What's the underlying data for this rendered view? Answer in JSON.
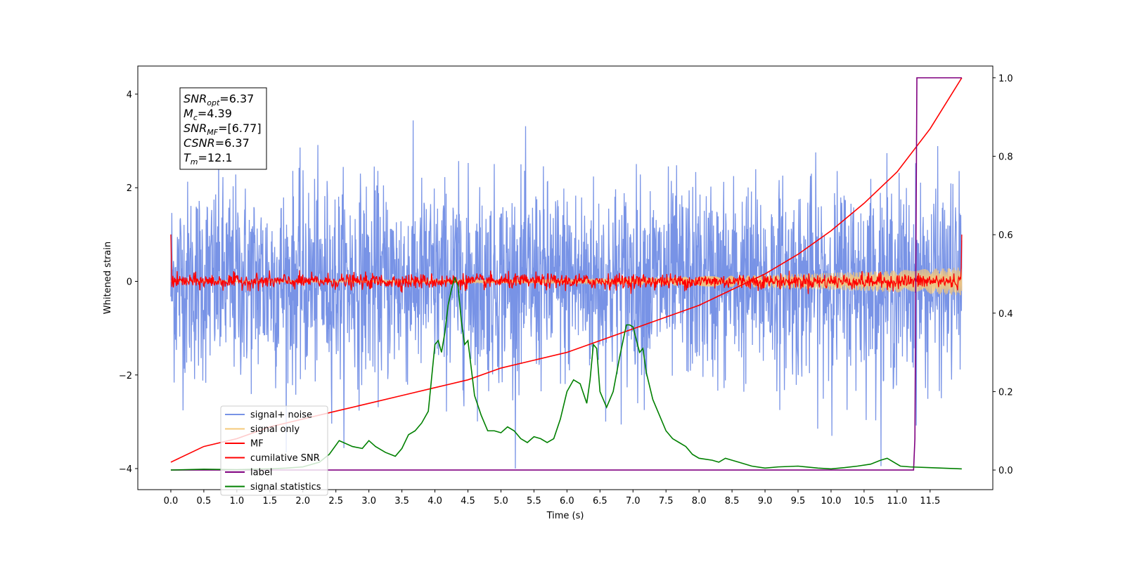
{
  "chart_data": {
    "type": "line",
    "title": "",
    "xlabel": "Time (s)",
    "ylabel": "Whitened strain",
    "y2label": "",
    "xlim": [
      -0.5,
      12.45
    ],
    "ylim": [
      -4.45,
      4.6
    ],
    "y2lim": [
      -0.05,
      1.03
    ],
    "x_ticks": [
      0.0,
      0.5,
      1.0,
      1.5,
      2.0,
      2.5,
      3.0,
      3.5,
      4.0,
      4.5,
      5.0,
      5.5,
      6.0,
      6.5,
      7.0,
      7.5,
      8.0,
      8.5,
      9.0,
      9.5,
      10.0,
      10.5,
      11.0,
      11.5
    ],
    "x_tick_labels": [
      "0.0",
      "0.5",
      "1.0",
      "1.5",
      "2.0",
      "2.5",
      "3.0",
      "3.5",
      "4.0",
      "4.5",
      "5.0",
      "5.5",
      "6.0",
      "6.5",
      "7.0",
      "7.5",
      "8.0",
      "8.5",
      "9.0",
      "9.5",
      "10.0",
      "10.5",
      "11.0",
      "11.5"
    ],
    "y_ticks": [
      4,
      2,
      0,
      -2,
      -4
    ],
    "y_tick_labels": [
      "4",
      "2",
      "0",
      "−2",
      "−4"
    ],
    "y2_ticks": [
      1.0,
      0.8,
      0.6,
      0.4,
      0.2,
      0.0
    ],
    "y2_tick_labels": [
      "1.0",
      "0.8",
      "0.6",
      "0.4",
      "0.2",
      "0.0"
    ],
    "grid": false,
    "legend_position": "lower-left",
    "stats_box": {
      "lines": [
        {
          "main": "SNR",
          "sub": "opt",
          "value": "=6.37"
        },
        {
          "main": "M",
          "sub": "c",
          "value": "=4.39"
        },
        {
          "main": "SNR",
          "sub": "MF",
          "value": "=[6.77]"
        },
        {
          "main": "CSNR",
          "sub": "",
          "value": "=6.37"
        },
        {
          "main": "T",
          "sub": "m",
          "value": "=12.1"
        }
      ]
    },
    "series": [
      {
        "name": "signal+ noise",
        "color": "#7893e6",
        "axis": "left",
        "style": "noise",
        "x_range": [
          0.0,
          11.98
        ],
        "std": 1.05,
        "peak_max": 4.15,
        "peak_min": -4.0
      },
      {
        "name": "signal only",
        "color": "#f5c87a",
        "axis": "left",
        "style": "chirp",
        "x_range": [
          0.0,
          11.98
        ],
        "amplitude_start": 0.02,
        "amplitude_end": 0.3
      },
      {
        "name": "MF",
        "color": "#ff0000",
        "axis": "left",
        "style": "noise",
        "x_range": [
          0.0,
          11.98
        ],
        "std": 0.08,
        "edge_values": [
          1.0,
          1.0
        ]
      },
      {
        "name": "cumilative SNR",
        "color": "#ff0000",
        "axis": "right",
        "x": [
          0.0,
          0.5,
          1.0,
          1.5,
          2.0,
          2.5,
          3.0,
          3.5,
          4.0,
          4.5,
          5.0,
          5.5,
          6.0,
          6.5,
          7.0,
          7.5,
          8.0,
          8.5,
          9.0,
          9.5,
          10.0,
          10.5,
          11.0,
          11.5,
          11.98
        ],
        "values": [
          0.02,
          0.06,
          0.08,
          0.11,
          0.13,
          0.15,
          0.17,
          0.19,
          0.21,
          0.23,
          0.26,
          0.28,
          0.3,
          0.33,
          0.36,
          0.39,
          0.42,
          0.46,
          0.5,
          0.55,
          0.61,
          0.68,
          0.76,
          0.87,
          1.0
        ]
      },
      {
        "name": "label",
        "color": "#800080",
        "axis": "right",
        "x": [
          0.0,
          11.25,
          11.27,
          11.3,
          11.98
        ],
        "values": [
          0.0,
          0.0,
          0.08,
          1.0,
          1.0
        ]
      },
      {
        "name": "signal statistics",
        "color": "#008000",
        "axis": "right",
        "x": [
          0.0,
          0.5,
          1.0,
          1.5,
          1.75,
          2.0,
          2.25,
          2.4,
          2.55,
          2.75,
          2.9,
          3.0,
          3.1,
          3.25,
          3.4,
          3.5,
          3.6,
          3.7,
          3.8,
          3.9,
          4.0,
          4.05,
          4.1,
          4.15,
          4.2,
          4.25,
          4.3,
          4.35,
          4.4,
          4.45,
          4.5,
          4.6,
          4.7,
          4.8,
          4.9,
          5.0,
          5.1,
          5.2,
          5.3,
          5.4,
          5.5,
          5.6,
          5.7,
          5.8,
          5.9,
          6.0,
          6.1,
          6.2,
          6.3,
          6.35,
          6.4,
          6.45,
          6.5,
          6.55,
          6.6,
          6.7,
          6.8,
          6.9,
          6.95,
          7.0,
          7.1,
          7.15,
          7.2,
          7.3,
          7.4,
          7.5,
          7.6,
          7.7,
          7.8,
          7.9,
          8.0,
          8.2,
          8.3,
          8.4,
          8.5,
          8.6,
          8.8,
          9.0,
          9.2,
          9.5,
          9.8,
          10.0,
          10.2,
          10.4,
          10.6,
          10.75,
          10.85,
          10.95,
          11.05,
          11.2,
          11.5,
          11.98
        ],
        "values": [
          0.0,
          0.002,
          0.001,
          0.003,
          0.005,
          0.008,
          0.02,
          0.04,
          0.075,
          0.06,
          0.055,
          0.075,
          0.06,
          0.045,
          0.035,
          0.055,
          0.09,
          0.1,
          0.12,
          0.15,
          0.32,
          0.33,
          0.3,
          0.35,
          0.42,
          0.46,
          0.49,
          0.47,
          0.38,
          0.32,
          0.33,
          0.19,
          0.14,
          0.1,
          0.1,
          0.095,
          0.11,
          0.1,
          0.08,
          0.07,
          0.085,
          0.08,
          0.07,
          0.08,
          0.13,
          0.2,
          0.23,
          0.22,
          0.17,
          0.23,
          0.32,
          0.31,
          0.2,
          0.18,
          0.16,
          0.2,
          0.29,
          0.37,
          0.37,
          0.365,
          0.3,
          0.31,
          0.25,
          0.18,
          0.14,
          0.1,
          0.08,
          0.07,
          0.06,
          0.04,
          0.03,
          0.025,
          0.02,
          0.03,
          0.025,
          0.02,
          0.01,
          0.005,
          0.008,
          0.01,
          0.005,
          0.003,
          0.006,
          0.01,
          0.015,
          0.025,
          0.03,
          0.02,
          0.01,
          0.008,
          0.006,
          0.003
        ]
      }
    ]
  }
}
